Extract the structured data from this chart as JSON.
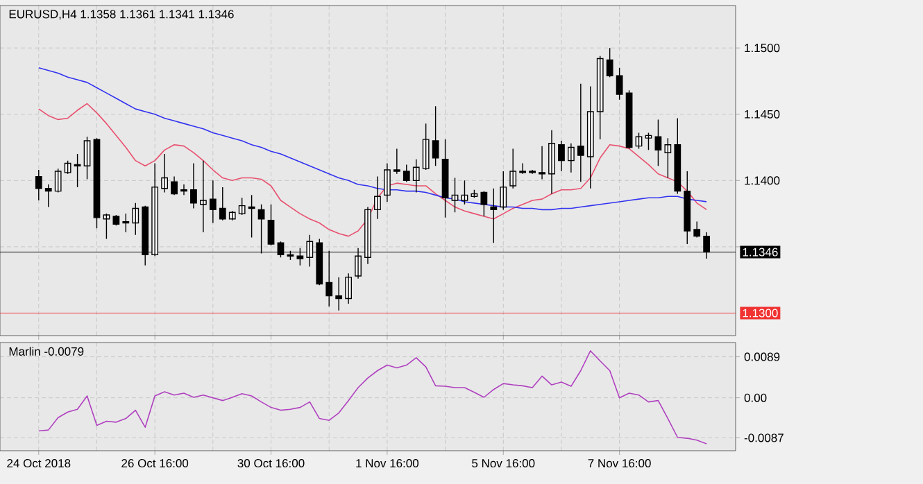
{
  "chart_data": [
    {
      "type": "candlestick",
      "title": "EURUSD,H4 1.1358 1.1361 1.1341 1.1346",
      "ohlc": [
        [
          1.1403,
          1.1408,
          1.1385,
          1.1394
        ],
        [
          1.1394,
          1.1397,
          1.138,
          1.1392
        ],
        [
          1.1392,
          1.1409,
          1.1391,
          1.1407
        ],
        [
          1.1406,
          1.1415,
          1.1405,
          1.1413
        ],
        [
          1.1412,
          1.142,
          1.1395,
          1.1411
        ],
        [
          1.1411,
          1.1433,
          1.1401,
          1.143
        ],
        [
          1.1431,
          1.1432,
          1.1364,
          1.1372
        ],
        [
          1.1371,
          1.1375,
          1.1356,
          1.1374
        ],
        [
          1.1373,
          1.1374,
          1.1366,
          1.1367
        ],
        [
          1.1369,
          1.1375,
          1.1361,
          1.1368
        ],
        [
          1.1368,
          1.1383,
          1.1359,
          1.1379
        ],
        [
          1.138,
          1.1381,
          1.1336,
          1.1344
        ],
        [
          1.1344,
          1.1413,
          1.1343,
          1.1395
        ],
        [
          1.1394,
          1.142,
          1.1391,
          1.1402
        ],
        [
          1.1399,
          1.1403,
          1.1389,
          1.139
        ],
        [
          1.1393,
          1.1397,
          1.1389,
          1.1392
        ],
        [
          1.1393,
          1.1413,
          1.1379,
          1.1383
        ],
        [
          1.1382,
          1.1415,
          1.1361,
          1.1385
        ],
        [
          1.1386,
          1.14,
          1.1368,
          1.1378
        ],
        [
          1.1379,
          1.1395,
          1.137,
          1.1371
        ],
        [
          1.1371,
          1.1377,
          1.137,
          1.1376
        ],
        [
          1.1375,
          1.1387,
          1.1374,
          1.1381
        ],
        [
          1.138,
          1.1389,
          1.1357,
          1.1379
        ],
        [
          1.1378,
          1.1382,
          1.1345,
          1.1371
        ],
        [
          1.137,
          1.1382,
          1.1351,
          1.1352
        ],
        [
          1.1353,
          1.1354,
          1.1342,
          1.1344
        ],
        [
          1.1344,
          1.1347,
          1.134,
          1.1343
        ],
        [
          1.1343,
          1.1349,
          1.1336,
          1.1341
        ],
        [
          1.1342,
          1.1359,
          1.1335,
          1.1354
        ],
        [
          1.1353,
          1.1356,
          1.1321,
          1.1322
        ],
        [
          1.1323,
          1.1347,
          1.1305,
          1.1313
        ],
        [
          1.1313,
          1.1327,
          1.1302,
          1.1311
        ],
        [
          1.1311,
          1.133,
          1.1307,
          1.1327
        ],
        [
          1.1328,
          1.1349,
          1.1326,
          1.1343
        ],
        [
          1.1342,
          1.138,
          1.1337,
          1.1378
        ],
        [
          1.1378,
          1.1403,
          1.1371,
          1.1388
        ],
        [
          1.1389,
          1.1413,
          1.1384,
          1.1408
        ],
        [
          1.1408,
          1.1424,
          1.1405,
          1.1407
        ],
        [
          1.1407,
          1.1412,
          1.1399,
          1.14
        ],
        [
          1.14,
          1.1416,
          1.1391,
          1.141
        ],
        [
          1.1409,
          1.1443,
          1.1408,
          1.1431
        ],
        [
          1.143,
          1.1456,
          1.1411,
          1.1417
        ],
        [
          1.1416,
          1.1431,
          1.1372,
          1.1387
        ],
        [
          1.1385,
          1.1402,
          1.1376,
          1.1389
        ],
        [
          1.1385,
          1.14,
          1.1382,
          1.1389
        ],
        [
          1.1388,
          1.1393,
          1.1387,
          1.139
        ],
        [
          1.1391,
          1.1392,
          1.1373,
          1.1382
        ],
        [
          1.138,
          1.1394,
          1.1353,
          1.1378
        ],
        [
          1.138,
          1.1407,
          1.1378,
          1.1395
        ],
        [
          1.1396,
          1.1424,
          1.1394,
          1.1407
        ],
        [
          1.1407,
          1.1413,
          1.1405,
          1.1406
        ],
        [
          1.1407,
          1.1408,
          1.1405,
          1.1406
        ],
        [
          1.1406,
          1.1426,
          1.1401,
          1.1405
        ],
        [
          1.1405,
          1.1438,
          1.139,
          1.1428
        ],
        [
          1.1427,
          1.143,
          1.1407,
          1.1415
        ],
        [
          1.1415,
          1.1428,
          1.1406,
          1.1425
        ],
        [
          1.1426,
          1.1473,
          1.1399,
          1.1419
        ],
        [
          1.1418,
          1.1471,
          1.1394,
          1.1452
        ],
        [
          1.1452,
          1.1494,
          1.1431,
          1.1492
        ],
        [
          1.1491,
          1.15,
          1.1478,
          1.1479
        ],
        [
          1.1479,
          1.1485,
          1.1461,
          1.1465
        ],
        [
          1.1466,
          1.1468,
          1.1424,
          1.1425
        ],
        [
          1.1426,
          1.1436,
          1.1424,
          1.1433
        ],
        [
          1.1432,
          1.1436,
          1.1423,
          1.1434
        ],
        [
          1.1433,
          1.1446,
          1.1411,
          1.1423
        ],
        [
          1.1421,
          1.1432,
          1.1402,
          1.1427
        ],
        [
          1.1427,
          1.1447,
          1.139,
          1.1392
        ],
        [
          1.1392,
          1.1407,
          1.1352,
          1.1362
        ],
        [
          1.1363,
          1.1369,
          1.1357,
          1.1358
        ],
        [
          1.1358,
          1.1361,
          1.1341,
          1.1346
        ]
      ],
      "series": [
        {
          "type": "line",
          "color": "#e8506e",
          "values": [
            1.1454,
            1.1449,
            1.1446,
            1.1447,
            1.1453,
            1.1458,
            1.1451,
            1.1443,
            1.1434,
            1.1425,
            1.1415,
            1.1411,
            1.1415,
            1.1423,
            1.1427,
            1.1426,
            1.1421,
            1.1415,
            1.1408,
            1.1402,
            1.14,
            1.1402,
            1.1402,
            1.1401,
            1.1396,
            1.1385,
            1.138,
            1.1375,
            1.1371,
            1.1368,
            1.1363,
            1.136,
            1.1358,
            1.1362,
            1.1371,
            1.1387,
            1.1396,
            1.1398,
            1.1397,
            1.1396,
            1.1396,
            1.139,
            1.1385,
            1.138,
            1.1377,
            1.1375,
            1.1373,
            1.1371,
            1.1375,
            1.1379,
            1.1382,
            1.1385,
            1.1386,
            1.139,
            1.1393,
            1.1393,
            1.1394,
            1.1402,
            1.1417,
            1.1427,
            1.1426,
            1.1424,
            1.1418,
            1.1412,
            1.1405,
            1.1402,
            1.1399,
            1.1392,
            1.1383,
            1.1378
          ]
        },
        {
          "type": "line",
          "color": "#3232f0",
          "values": [
            1.1485,
            1.1483,
            1.1481,
            1.1478,
            1.1476,
            1.1474,
            1.147,
            1.1466,
            1.1462,
            1.1458,
            1.1454,
            1.1452,
            1.145,
            1.1447,
            1.1445,
            1.1443,
            1.1441,
            1.1439,
            1.1436,
            1.1434,
            1.1432,
            1.143,
            1.1427,
            1.1425,
            1.1422,
            1.142,
            1.1417,
            1.1414,
            1.1411,
            1.1408,
            1.1405,
            1.1402,
            1.14,
            1.1397,
            1.1396,
            1.1394,
            1.1393,
            1.1393,
            1.1392,
            1.1392,
            1.1391,
            1.1389,
            1.1387,
            1.1386,
            1.1384,
            1.1383,
            1.1382,
            1.1381,
            1.138,
            1.138,
            1.1379,
            1.1379,
            1.1378,
            1.1378,
            1.1379,
            1.1379,
            1.138,
            1.1381,
            1.1382,
            1.1383,
            1.1384,
            1.1385,
            1.1386,
            1.1387,
            1.1387,
            1.1388,
            1.1388,
            1.1386,
            1.1385,
            1.1384
          ]
        }
      ],
      "ylim": [
        1.1283,
        1.1532
      ],
      "yticks": [
        {
          "value": 1.135,
          "label": null
        },
        {
          "value": 1.14,
          "label": "1.1400"
        },
        {
          "value": 1.145,
          "label": "1.1450"
        },
        {
          "value": 1.15,
          "label": "1.1500"
        }
      ],
      "ref_lines": [
        {
          "axis": "y",
          "value": 1.13,
          "label": "1.1300",
          "color": "#f03232"
        },
        {
          "axis": "y",
          "value": 1.1346,
          "label": "1.1346",
          "color": "#000000"
        }
      ],
      "grid": true,
      "tick_labels": "y"
    },
    {
      "type": "line",
      "title": "Marlin -0.0079",
      "categories": [
        "24 Oct 2018",
        null,
        null,
        null,
        null,
        null,
        null,
        null,
        null,
        null,
        null,
        null,
        "26 Oct 16:00",
        null,
        null,
        null,
        null,
        null,
        null,
        null,
        null,
        null,
        null,
        null,
        "30 Oct 16:00",
        null,
        null,
        null,
        null,
        null,
        null,
        null,
        null,
        null,
        null,
        null,
        "1 Nov 16:00",
        null,
        null,
        null,
        null,
        null,
        null,
        null,
        null,
        null,
        null,
        null,
        "5 Nov 16:00",
        null,
        null,
        null,
        null,
        null,
        null,
        null,
        null,
        null,
        null,
        null,
        "7 Nov 16:00",
        null,
        null,
        null,
        null,
        null,
        null,
        null,
        null,
        null
      ],
      "color": "#b040c0",
      "values": [
        -0.0072,
        -0.007,
        -0.0043,
        -0.0031,
        -0.0025,
        0.0004,
        -0.006,
        -0.0051,
        -0.0053,
        -0.0045,
        -0.0027,
        -0.0064,
        0.0004,
        0.0013,
        0.0006,
        0.001,
        0.0001,
        0.0006,
        0.0,
        -0.0006,
        0.0001,
        0.0009,
        0.0004,
        -0.0009,
        -0.0021,
        -0.0027,
        -0.0025,
        -0.0021,
        -0.0009,
        -0.0045,
        -0.0049,
        -0.0033,
        -0.0006,
        0.0022,
        0.0043,
        0.0059,
        0.0071,
        0.0065,
        0.0071,
        0.0087,
        0.0067,
        0.0026,
        0.0025,
        0.0022,
        0.0022,
        0.0012,
        0.0001,
        0.0018,
        0.0031,
        0.0028,
        0.0026,
        0.0022,
        0.0047,
        0.0028,
        0.0034,
        0.0025,
        0.0059,
        0.0102,
        0.008,
        0.0059,
        0.0,
        0.001,
        0.0006,
        -0.0009,
        -0.0006,
        -0.0045,
        -0.0086,
        -0.0088,
        -0.0092,
        -0.01
      ],
      "ylim": [
        -0.0115,
        0.012
      ],
      "yticks": [
        -0.0087,
        {
          "value": 0,
          "label": "0.00"
        },
        0.0089
      ],
      "grid": true
    }
  ]
}
